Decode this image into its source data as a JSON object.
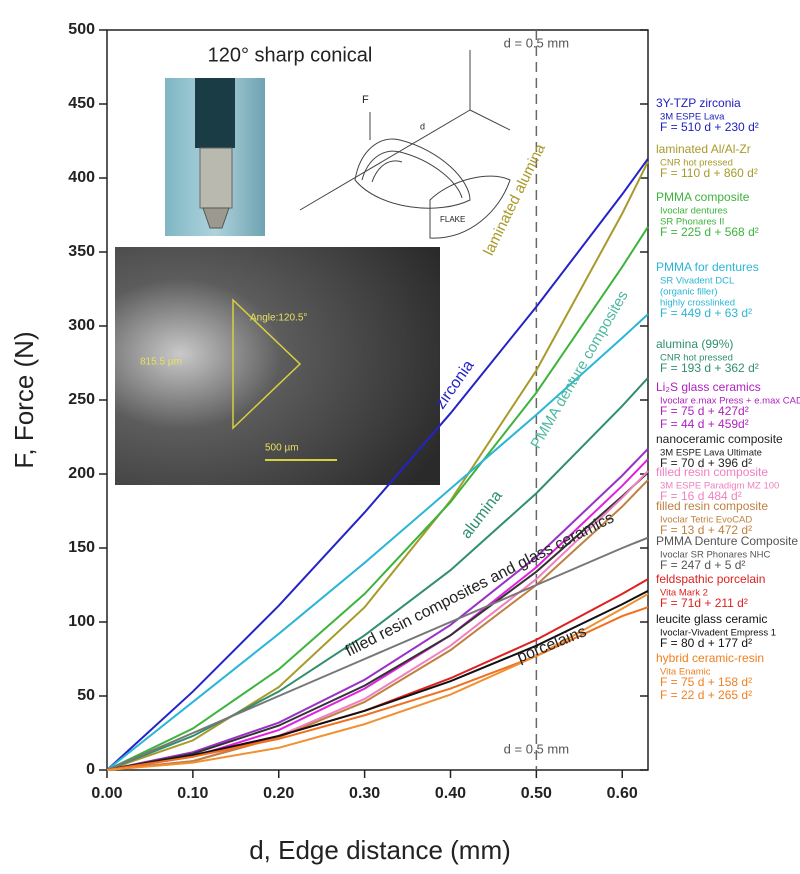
{
  "chart_data": {
    "type": "line",
    "inset_title": "120° sharp conical",
    "xlabel": "d,   Edge distance (mm)",
    "ylabel": "F,   Force (N)",
    "xlim": [
      0,
      0.63
    ],
    "ylim": [
      0,
      500
    ],
    "xticks": [
      {
        "value": 0,
        "label": "0.00"
      },
      {
        "value": 0.1,
        "label": "0.10"
      },
      {
        "value": 0.2,
        "label": "0.20"
      },
      {
        "value": 0.3,
        "label": "0.30"
      },
      {
        "value": 0.4,
        "label": "0.40"
      },
      {
        "value": 0.5,
        "label": "0.50"
      },
      {
        "value": 0.6,
        "label": "0.60"
      }
    ],
    "yticks": [
      0,
      50,
      100,
      150,
      200,
      250,
      300,
      350,
      400,
      450,
      500
    ],
    "vline": {
      "value": 0.5,
      "labels": [
        "d =  0.5 mm",
        "d =  0.5 mm"
      ]
    },
    "x": [
      0,
      0.1,
      0.2,
      0.3,
      0.4,
      0.5,
      0.6,
      0.63
    ],
    "series": [
      {
        "color": "#2323c8",
        "values": [
          0,
          53,
          111,
          174,
          241,
          313,
          389,
          413
        ]
      },
      {
        "color": "#a89a2a",
        "values": [
          0,
          20,
          56,
          110,
          182,
          270,
          376,
          411
        ]
      },
      {
        "color": "#3cb43c",
        "values": [
          0,
          28,
          68,
          119,
          181,
          255,
          340,
          367
        ]
      },
      {
        "color": "#2bb5d6",
        "values": [
          0,
          46,
          92,
          140,
          190,
          240,
          292,
          308
        ]
      },
      {
        "color": "#2f8f6f",
        "values": [
          0,
          23,
          53,
          91,
          135,
          187,
          246,
          265
        ]
      },
      {
        "color": "#9b30c8",
        "values": [
          0,
          12,
          32,
          61,
          98,
          144,
          199,
          217
        ]
      },
      {
        "color": "#e020e0",
        "values": [
          0,
          9,
          27,
          55,
          91,
          137,
          192,
          210
        ]
      },
      {
        "color": "#333333",
        "values": [
          0,
          11,
          30,
          57,
          91,
          134,
          185,
          201
        ]
      },
      {
        "color": "#f080c0",
        "values": [
          0,
          6,
          23,
          48,
          84,
          129,
          184,
          202
        ]
      },
      {
        "color": "#c08040",
        "values": [
          0,
          6,
          22,
          46,
          81,
          125,
          178,
          196
        ]
      },
      {
        "color": "#777777",
        "values": [
          0,
          25,
          50,
          75,
          100,
          125,
          150,
          157
        ]
      },
      {
        "color": "#e02020",
        "values": [
          0,
          9,
          23,
          40,
          62,
          88,
          119,
          129
        ]
      },
      {
        "color": "#111111",
        "values": [
          0,
          10,
          23,
          40,
          60,
          84,
          112,
          121
        ]
      },
      {
        "color": "#f07020",
        "values": [
          0,
          9,
          21,
          37,
          55,
          77,
          104,
          110
        ]
      },
      {
        "color": "#f09030",
        "values": [
          0,
          5,
          15,
          31,
          51,
          77,
          109,
          119
        ]
      }
    ],
    "curve_labels": [
      {
        "text": "zirconia",
        "color": "#2323c8"
      },
      {
        "text": "laminated alumina",
        "color": "#a89a2a"
      },
      {
        "text": "PMMA denture composites",
        "color": "#4fb8a0"
      },
      {
        "text": "alumina",
        "color": "#2f8f6f"
      },
      {
        "text": "filled resin composites   and glass ceramics",
        "color": "#222222"
      },
      {
        "text": "porcelains",
        "color": "#222222"
      }
    ],
    "inset_texts": [
      "Angle:120.5°",
      "815.5 µm",
      "500 µm",
      "F",
      "d",
      "FLAKE"
    ],
    "legend": [
      {
        "color": "#2020c0",
        "lines": [
          "3Y-TZP  zirconia",
          "3M ESPE Lava",
          "F = 510 d  + 230 d²"
        ]
      },
      {
        "color": "#a89a2a",
        "lines": [
          "laminated Al/Al-Zr",
          "CNR hot pressed",
          "F = 110 d  + 860 d²"
        ]
      },
      {
        "color": "#3cb43c",
        "lines": [
          "PMMA composite",
          "Ivoclar dentures",
          "SR  Phonares II",
          "F = 225 d  + 568 d²"
        ]
      },
      {
        "color": "#2bb5d6",
        "lines": [
          "PMMA for dentures",
          "SR Vivadent  DCL",
          "(organic filler)",
          "highly crosslinked",
          "F = 449 d  + 63 d²"
        ]
      },
      {
        "color": "#2f8f6f",
        "lines": [
          "alumina  (99%)",
          "CNR hot pressed",
          "F = 193 d  + 362 d²"
        ]
      },
      {
        "color": "#b020c0",
        "lines": [
          "Li₂S glass ceramics",
          "Ivoclar e.max Press + e.max CAD",
          "F = 75 d  + 427d²",
          "F = 44 d  + 459d²"
        ]
      },
      {
        "color": "#222222",
        "lines": [
          "nanoceramic composite",
          "3M ESPE Lava Ultimate",
          "F = 70 d  +  396 d²"
        ]
      },
      {
        "color": "#f080c0",
        "lines": [
          "filled resin composite",
          "3M ESPE Paradigm  MZ 100",
          "F =  16 d   484 d²"
        ]
      },
      {
        "color": "#c08040",
        "lines": [
          "filled resin composite",
          "Ivoclar Tetric EvoCAD",
          "F =  13 d  + 472 d²"
        ]
      },
      {
        "color": "#555555",
        "lines": [
          "PMMA Denture Composite",
          "Ivoclar SR  Phonares NHC",
          "F = 247 d  + 5 d²"
        ]
      },
      {
        "color": "#e02020",
        "lines": [
          "feldspathic porcelain",
          "Vita Mark 2",
          "F = 71d  + 211 d²"
        ]
      },
      {
        "color": "#111111",
        "lines": [
          "leucite glass ceramic",
          "Ivoclar-Vivadent Empress 1",
          "F =  80 d  + 177 d²"
        ]
      },
      {
        "color": "#f08020",
        "lines": [
          "hybrid ceramic-resin",
          "Vita Enamic",
          "F = 75 d  + 158 d²",
          "F = 22 d  + 265 d²"
        ]
      }
    ]
  }
}
